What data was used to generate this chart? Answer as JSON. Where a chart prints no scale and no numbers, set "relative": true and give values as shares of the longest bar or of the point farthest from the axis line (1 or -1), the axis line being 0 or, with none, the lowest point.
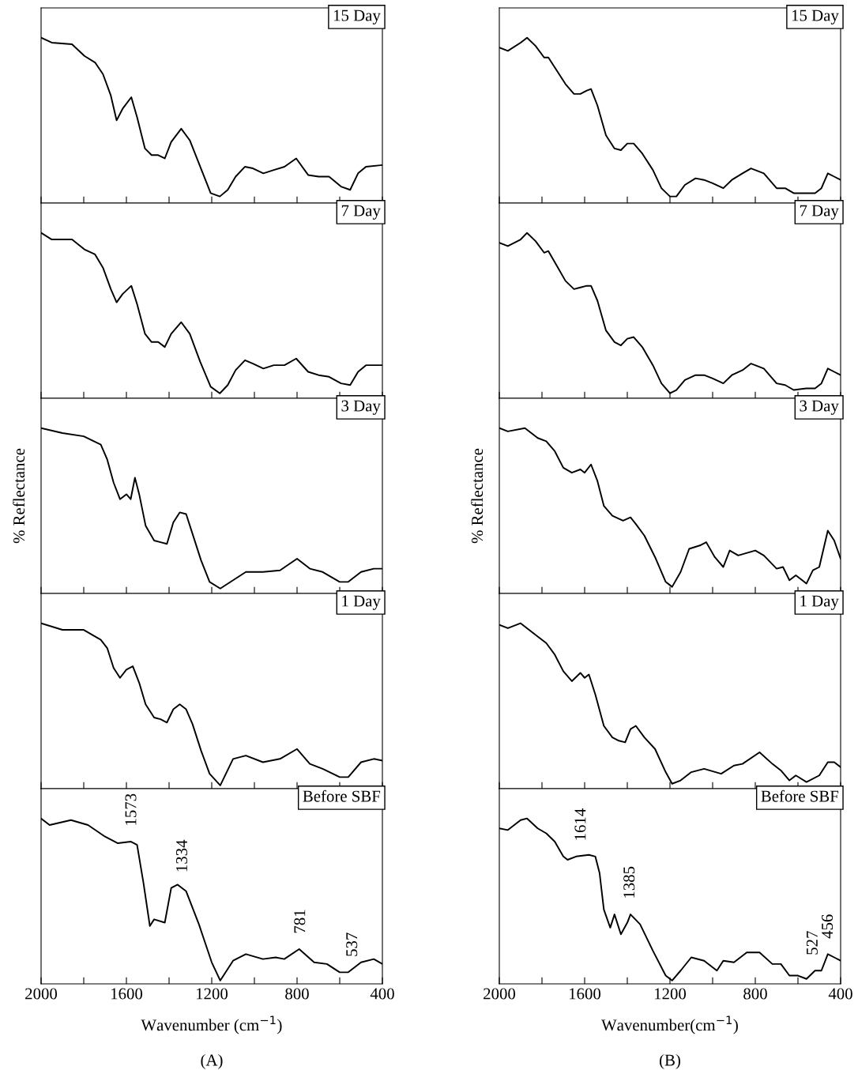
{
  "chart_data": [
    {
      "type": "line",
      "title": "15 Day",
      "relative": true,
      "xlim": [
        2000,
        400
      ],
      "xticks": [
        2000,
        {
          "value": 1800,
          "label": null
        },
        1600,
        {
          "value": 1400,
          "label": null
        },
        1200,
        {
          "value": 1000,
          "label": null
        },
        800,
        {
          "value": 600,
          "label": null
        },
        400
      ],
      "tick_labels": false,
      "grid": false,
      "legend": false,
      "x": [
        2000,
        1950,
        1855,
        1797,
        1747,
        1710,
        1673,
        1646,
        1618,
        1577,
        1550,
        1513,
        1482,
        1451,
        1420,
        1390,
        1343,
        1303,
        1254,
        1205,
        1162,
        1125,
        1088,
        1044,
        1007,
        958,
        909,
        859,
        804,
        748,
        699,
        650,
        594,
        551,
        514,
        477,
        400
      ],
      "series": [
        {
          "color": "#000000",
          "values": [
            1.0,
            0.97,
            0.96,
            0.89,
            0.85,
            0.78,
            0.65,
            0.5,
            0.57,
            0.64,
            0.52,
            0.33,
            0.29,
            0.29,
            0.27,
            0.37,
            0.45,
            0.38,
            0.22,
            0.06,
            0.04,
            0.08,
            0.16,
            0.22,
            0.21,
            0.18,
            0.2,
            0.22,
            0.27,
            0.17,
            0.16,
            0.16,
            0.1,
            0.08,
            0.18,
            0.22,
            0.23
          ]
        }
      ]
    },
    {
      "type": "line",
      "title": "7 Day",
      "relative": true,
      "xlim": [
        2000,
        400
      ],
      "xticks": [
        2000,
        {
          "value": 1800,
          "label": null
        },
        1600,
        {
          "value": 1400,
          "label": null
        },
        1200,
        {
          "value": 1000,
          "label": null
        },
        800,
        {
          "value": 600,
          "label": null
        },
        400
      ],
      "tick_labels": false,
      "grid": false,
      "legend": false,
      "x": [
        2000,
        1950,
        1855,
        1797,
        1747,
        1710,
        1673,
        1646,
        1618,
        1577,
        1550,
        1513,
        1482,
        1451,
        1420,
        1390,
        1343,
        1303,
        1254,
        1205,
        1162,
        1125,
        1088,
        1044,
        1007,
        958,
        909,
        859,
        804,
        748,
        699,
        650,
        594,
        551,
        514,
        477,
        400
      ],
      "series": [
        {
          "color": "#000000",
          "values": [
            1.0,
            0.96,
            0.96,
            0.9,
            0.87,
            0.79,
            0.66,
            0.58,
            0.63,
            0.68,
            0.57,
            0.39,
            0.34,
            0.34,
            0.31,
            0.39,
            0.46,
            0.39,
            0.22,
            0.07,
            0.03,
            0.08,
            0.17,
            0.23,
            0.21,
            0.18,
            0.2,
            0.2,
            0.24,
            0.16,
            0.14,
            0.13,
            0.09,
            0.08,
            0.16,
            0.2,
            0.2
          ]
        }
      ]
    },
    {
      "type": "line",
      "title": "3 Day",
      "ylabel": "% Reflectance",
      "relative": true,
      "xlim": [
        2000,
        400
      ],
      "xticks": [
        2000,
        {
          "value": 1800,
          "label": null
        },
        1600,
        {
          "value": 1400,
          "label": null
        },
        1200,
        {
          "value": 1000,
          "label": null
        },
        800,
        {
          "value": 600,
          "label": null
        },
        400
      ],
      "tick_labels": false,
      "grid": false,
      "legend": false,
      "x": [
        2000,
        1900,
        1800,
        1720,
        1690,
        1660,
        1630,
        1600,
        1580,
        1560,
        1540,
        1510,
        1470,
        1440,
        1410,
        1380,
        1350,
        1320,
        1290,
        1250,
        1210,
        1160,
        1100,
        1040,
        960,
        880,
        800,
        740,
        680,
        600,
        560,
        500,
        440,
        400
      ],
      "series": [
        {
          "color": "#000000",
          "values": [
            1.0,
            0.97,
            0.95,
            0.9,
            0.81,
            0.67,
            0.57,
            0.6,
            0.57,
            0.7,
            0.6,
            0.41,
            0.32,
            0.31,
            0.3,
            0.43,
            0.49,
            0.48,
            0.36,
            0.2,
            0.07,
            0.03,
            0.08,
            0.13,
            0.13,
            0.14,
            0.21,
            0.15,
            0.13,
            0.07,
            0.07,
            0.13,
            0.15,
            0.15
          ]
        }
      ]
    },
    {
      "type": "line",
      "title": "1 Day",
      "relative": true,
      "xlim": [
        2000,
        400
      ],
      "xticks": [
        2000,
        {
          "value": 1800,
          "label": null
        },
        1600,
        {
          "value": 1400,
          "label": null
        },
        1200,
        {
          "value": 1000,
          "label": null
        },
        800,
        {
          "value": 600,
          "label": null
        },
        400
      ],
      "tick_labels": false,
      "grid": false,
      "legend": false,
      "x": [
        2000,
        1900,
        1800,
        1720,
        1690,
        1660,
        1630,
        1600,
        1570,
        1540,
        1510,
        1470,
        1440,
        1410,
        1380,
        1350,
        1320,
        1290,
        1250,
        1210,
        1160,
        1100,
        1040,
        960,
        880,
        800,
        740,
        680,
        600,
        560,
        500,
        440,
        400
      ],
      "series": [
        {
          "color": "#000000",
          "values": [
            1.0,
            0.96,
            0.96,
            0.9,
            0.85,
            0.73,
            0.67,
            0.72,
            0.74,
            0.64,
            0.51,
            0.43,
            0.42,
            0.4,
            0.48,
            0.51,
            0.48,
            0.39,
            0.23,
            0.09,
            0.02,
            0.18,
            0.2,
            0.16,
            0.18,
            0.24,
            0.15,
            0.12,
            0.07,
            0.07,
            0.16,
            0.18,
            0.17
          ]
        }
      ]
    },
    {
      "type": "line",
      "title": "Before SBF",
      "xlabel": "Wavenumber (cm$^{−1}$)",
      "relative": true,
      "xlim": [
        2000,
        400
      ],
      "xticks": [
        2000,
        {
          "value": 1800,
          "label": null
        },
        1600,
        {
          "value": 1400,
          "label": null
        },
        1200,
        {
          "value": 1000,
          "label": null
        },
        800,
        {
          "value": 600,
          "label": null
        },
        400
      ],
      "tick_labels": "x",
      "grid": false,
      "legend": false,
      "x": [
        2000,
        1960,
        1860,
        1780,
        1700,
        1640,
        1580,
        1550,
        1520,
        1490,
        1470,
        1420,
        1390,
        1360,
        1320,
        1260,
        1200,
        1160,
        1100,
        1040,
        960,
        900,
        860,
        790,
        720,
        660,
        600,
        560,
        500,
        440,
        400
      ],
      "series": [
        {
          "color": "#000000",
          "values": [
            1.0,
            0.96,
            0.99,
            0.96,
            0.89,
            0.85,
            0.86,
            0.84,
            0.61,
            0.35,
            0.39,
            0.37,
            0.58,
            0.6,
            0.56,
            0.36,
            0.13,
            0.02,
            0.14,
            0.18,
            0.15,
            0.16,
            0.15,
            0.21,
            0.13,
            0.12,
            0.07,
            0.07,
            0.13,
            0.15,
            0.12
          ]
        }
      ],
      "annotations": [
        {
          "text": "1573",
          "x": 1573,
          "y": 0.86
        },
        {
          "text": "1334",
          "x": 1334,
          "y": 0.58
        },
        {
          "text": "781",
          "x": 781,
          "y": 0.21
        },
        {
          "text": "537",
          "x": 537,
          "y": 0.07
        },
        "(A)"
      ]
    },
    {
      "type": "line",
      "title": "15 Day",
      "relative": true,
      "xlim": [
        2000,
        400
      ],
      "xticks": [
        2000,
        {
          "value": 1800,
          "label": null
        },
        1600,
        {
          "value": 1400,
          "label": null
        },
        1200,
        {
          "value": 1000,
          "label": null
        },
        800,
        {
          "value": 600,
          "label": null
        },
        400
      ],
      "tick_labels": false,
      "grid": false,
      "legend": false,
      "x": [
        2000,
        1960,
        1900,
        1870,
        1830,
        1790,
        1770,
        1730,
        1690,
        1650,
        1620,
        1590,
        1570,
        1540,
        1500,
        1460,
        1430,
        1400,
        1370,
        1330,
        1280,
        1240,
        1200,
        1170,
        1130,
        1080,
        1040,
        1000,
        950,
        910,
        860,
        820,
        760,
        700,
        660,
        620,
        560,
        520,
        490,
        460,
        430,
        400
      ],
      "series": [
        {
          "color": "#000000",
          "values": [
            0.94,
            0.92,
            0.97,
            1.0,
            0.95,
            0.88,
            0.88,
            0.8,
            0.72,
            0.66,
            0.66,
            0.68,
            0.69,
            0.59,
            0.41,
            0.33,
            0.32,
            0.36,
            0.36,
            0.3,
            0.2,
            0.09,
            0.04,
            0.04,
            0.11,
            0.15,
            0.14,
            0.12,
            0.09,
            0.14,
            0.18,
            0.21,
            0.18,
            0.09,
            0.09,
            0.06,
            0.06,
            0.06,
            0.09,
            0.18,
            0.16,
            0.14
          ]
        }
      ]
    },
    {
      "type": "line",
      "title": "7 Day",
      "relative": true,
      "xlim": [
        2000,
        400
      ],
      "xticks": [
        2000,
        {
          "value": 1800,
          "label": null
        },
        1600,
        {
          "value": 1400,
          "label": null
        },
        1200,
        {
          "value": 1000,
          "label": null
        },
        800,
        {
          "value": 600,
          "label": null
        },
        400
      ],
      "tick_labels": false,
      "grid": false,
      "legend": false,
      "x": [
        2000,
        1960,
        1900,
        1870,
        1830,
        1790,
        1770,
        1730,
        1690,
        1650,
        1620,
        1590,
        1570,
        1540,
        1500,
        1460,
        1430,
        1400,
        1370,
        1330,
        1280,
        1240,
        1200,
        1170,
        1130,
        1080,
        1040,
        1000,
        950,
        910,
        860,
        820,
        760,
        700,
        660,
        620,
        560,
        520,
        490,
        460,
        430,
        400
      ],
      "series": [
        {
          "color": "#000000",
          "values": [
            0.94,
            0.92,
            0.96,
            1.0,
            0.95,
            0.88,
            0.89,
            0.8,
            0.71,
            0.66,
            0.67,
            0.68,
            0.68,
            0.59,
            0.41,
            0.34,
            0.32,
            0.36,
            0.37,
            0.31,
            0.2,
            0.09,
            0.03,
            0.05,
            0.11,
            0.14,
            0.14,
            0.12,
            0.09,
            0.14,
            0.17,
            0.21,
            0.18,
            0.09,
            0.08,
            0.05,
            0.06,
            0.06,
            0.09,
            0.18,
            0.16,
            0.14
          ]
        }
      ]
    },
    {
      "type": "line",
      "title": "3 Day",
      "ylabel": "% Reflectance",
      "relative": true,
      "xlim": [
        2000,
        400
      ],
      "xticks": [
        2000,
        {
          "value": 1800,
          "label": null
        },
        1600,
        {
          "value": 1400,
          "label": null
        },
        1200,
        {
          "value": 1000,
          "label": null
        },
        800,
        {
          "value": 600,
          "label": null
        },
        400
      ],
      "tick_labels": false,
      "grid": false,
      "legend": false,
      "x": [
        2000,
        1960,
        1880,
        1820,
        1780,
        1740,
        1700,
        1660,
        1620,
        1600,
        1570,
        1540,
        1510,
        1470,
        1420,
        1385,
        1360,
        1320,
        1270,
        1220,
        1190,
        1150,
        1110,
        1060,
        1030,
        990,
        950,
        920,
        880,
        800,
        760,
        700,
        670,
        640,
        610,
        560,
        530,
        500,
        460,
        430,
        400
      ],
      "series": [
        {
          "color": "#000000",
          "values": [
            1.0,
            0.98,
            1.0,
            0.94,
            0.92,
            0.86,
            0.76,
            0.73,
            0.75,
            0.73,
            0.78,
            0.68,
            0.53,
            0.47,
            0.44,
            0.46,
            0.42,
            0.35,
            0.22,
            0.07,
            0.04,
            0.13,
            0.27,
            0.29,
            0.31,
            0.22,
            0.16,
            0.26,
            0.23,
            0.26,
            0.23,
            0.15,
            0.16,
            0.08,
            0.11,
            0.06,
            0.14,
            0.16,
            0.38,
            0.32,
            0.21
          ]
        }
      ]
    },
    {
      "type": "line",
      "title": "1 Day",
      "relative": true,
      "xlim": [
        2000,
        400
      ],
      "xticks": [
        2000,
        {
          "value": 1800,
          "label": null
        },
        1600,
        {
          "value": 1400,
          "label": null
        },
        1200,
        {
          "value": 1000,
          "label": null
        },
        800,
        {
          "value": 600,
          "label": null
        },
        400
      ],
      "tick_labels": false,
      "grid": false,
      "legend": false,
      "x": [
        2000,
        1960,
        1900,
        1820,
        1780,
        1740,
        1700,
        1660,
        1620,
        1600,
        1580,
        1550,
        1510,
        1470,
        1440,
        1410,
        1385,
        1360,
        1320,
        1270,
        1220,
        1190,
        1150,
        1100,
        1040,
        960,
        900,
        860,
        780,
        720,
        680,
        640,
        610,
        560,
        500,
        460,
        430,
        400
      ],
      "series": [
        {
          "color": "#000000",
          "values": [
            0.99,
            0.97,
            1.0,
            0.92,
            0.88,
            0.81,
            0.71,
            0.65,
            0.7,
            0.67,
            0.69,
            0.57,
            0.38,
            0.31,
            0.29,
            0.28,
            0.36,
            0.38,
            0.31,
            0.24,
            0.1,
            0.03,
            0.05,
            0.1,
            0.12,
            0.09,
            0.14,
            0.15,
            0.22,
            0.15,
            0.11,
            0.05,
            0.08,
            0.04,
            0.08,
            0.16,
            0.16,
            0.13
          ]
        }
      ]
    },
    {
      "type": "line",
      "title": "Before SBF",
      "xlabel": "Wavenumber(cm$^{−1}$)",
      "relative": true,
      "xlim": [
        2000,
        400
      ],
      "xticks": [
        2000,
        {
          "value": 1800,
          "label": null
        },
        1600,
        {
          "value": 1400,
          "label": null
        },
        1200,
        {
          "value": 1000,
          "label": null
        },
        800,
        {
          "value": 600,
          "label": null
        },
        400
      ],
      "tick_labels": "x",
      "grid": false,
      "legend": false,
      "x": [
        2000,
        1960,
        1900,
        1870,
        1820,
        1780,
        1740,
        1700,
        1680,
        1640,
        1580,
        1550,
        1530,
        1510,
        1480,
        1460,
        1430,
        1400,
        1385,
        1340,
        1280,
        1220,
        1190,
        1150,
        1100,
        1040,
        980,
        950,
        900,
        840,
        780,
        720,
        680,
        640,
        600,
        560,
        520,
        490,
        460,
        430,
        400
      ],
      "series": [
        {
          "color": "#000000",
          "values": [
            0.94,
            0.93,
            0.99,
            1.0,
            0.94,
            0.91,
            0.86,
            0.77,
            0.75,
            0.77,
            0.78,
            0.77,
            0.67,
            0.45,
            0.34,
            0.42,
            0.3,
            0.37,
            0.42,
            0.36,
            0.2,
            0.05,
            0.02,
            0.08,
            0.16,
            0.14,
            0.08,
            0.14,
            0.13,
            0.19,
            0.19,
            0.12,
            0.12,
            0.05,
            0.05,
            0.03,
            0.08,
            0.08,
            0.18,
            0.16,
            0.14
          ]
        }
      ],
      "annotations": [
        {
          "text": "1614",
          "x": 1614,
          "y": 0.77
        },
        {
          "text": "1385",
          "x": 1385,
          "y": 0.42
        },
        {
          "text": "527",
          "x": 527,
          "y": 0.08
        },
        {
          "text": "456",
          "x": 456,
          "y": 0.18
        },
        "(B)"
      ]
    }
  ]
}
